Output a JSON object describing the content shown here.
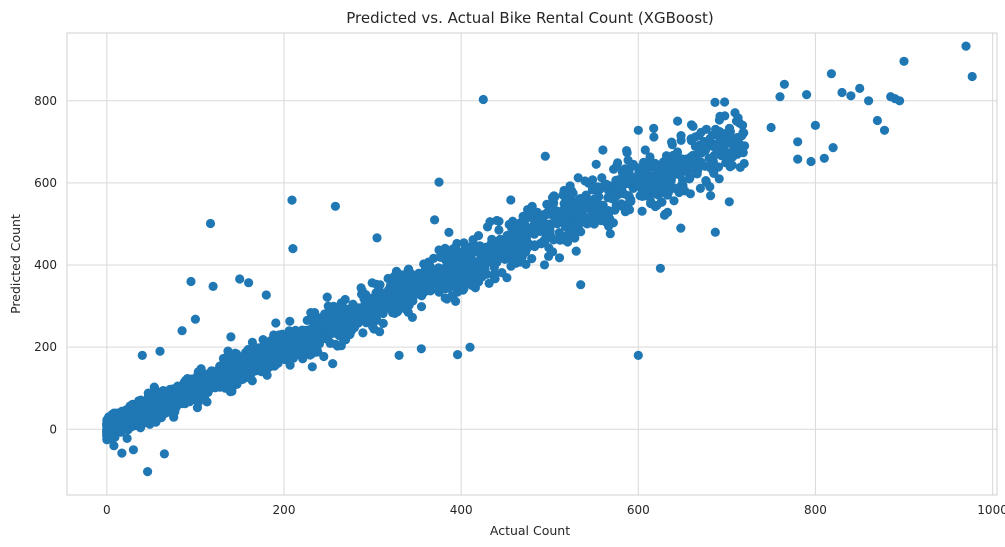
{
  "chart_data": {
    "type": "scatter",
    "title": "Predicted vs. Actual Bike Rental Count (XGBoost)",
    "xlabel": "Actual Count",
    "ylabel": "Predicted Count",
    "xlim": [
      -45,
      1005
    ],
    "ylim": [
      -160,
      965
    ],
    "x_ticks": [
      0,
      200,
      400,
      600,
      800,
      1000
    ],
    "y_ticks": [
      0,
      200,
      400,
      600,
      800
    ],
    "grid": true,
    "marker_color": "#1f77b4",
    "background": "#ffffff",
    "grid_color": "#d9d9d9",
    "trend": {
      "note_free_generation": true,
      "n_points": 2400,
      "slope": 0.99,
      "noise_base": 12,
      "noise_scale": 0.05,
      "x_max": 1000
    },
    "points": [
      [
        970,
        933
      ],
      [
        977,
        859
      ],
      [
        900,
        896
      ],
      [
        425,
        803
      ],
      [
        818,
        866
      ],
      [
        765,
        840
      ],
      [
        885,
        810
      ],
      [
        870,
        752
      ],
      [
        820,
        686
      ],
      [
        878,
        728
      ],
      [
        810,
        660
      ],
      [
        780,
        658
      ],
      [
        795,
        652
      ],
      [
        375,
        602
      ],
      [
        209,
        558
      ],
      [
        258,
        543
      ],
      [
        117,
        501
      ],
      [
        600,
        728
      ],
      [
        625,
        392
      ],
      [
        600,
        180
      ],
      [
        396,
        182
      ],
      [
        535,
        352
      ],
      [
        687,
        480
      ],
      [
        648,
        490
      ],
      [
        210,
        440
      ],
      [
        305,
        466
      ],
      [
        370,
        510
      ],
      [
        475,
        535
      ],
      [
        495,
        665
      ],
      [
        560,
        680
      ],
      [
        46,
        -103
      ],
      [
        65,
        -60
      ],
      [
        17,
        -58
      ],
      [
        30,
        -50
      ],
      [
        8,
        -40
      ],
      [
        95,
        360
      ],
      [
        120,
        348
      ],
      [
        150,
        366
      ],
      [
        160,
        357
      ],
      [
        180,
        327
      ],
      [
        100,
        268
      ],
      [
        85,
        240
      ],
      [
        140,
        225
      ],
      [
        60,
        190
      ],
      [
        40,
        180
      ],
      [
        255,
        160
      ],
      [
        355,
        196
      ],
      [
        330,
        180
      ],
      [
        410,
        200
      ],
      [
        300,
        250
      ],
      [
        250,
        300
      ],
      [
        350,
        330
      ],
      [
        450,
        440
      ],
      [
        500,
        500
      ],
      [
        550,
        560
      ],
      [
        650,
        640
      ],
      [
        700,
        700
      ],
      [
        750,
        735
      ],
      [
        720,
        690
      ],
      [
        680,
        660
      ],
      [
        760,
        810
      ],
      [
        790,
        815
      ],
      [
        830,
        820
      ],
      [
        850,
        830
      ],
      [
        860,
        800
      ],
      [
        890,
        805
      ],
      [
        895,
        800
      ],
      [
        840,
        812
      ],
      [
        800,
        740
      ],
      [
        780,
        700
      ]
    ]
  }
}
